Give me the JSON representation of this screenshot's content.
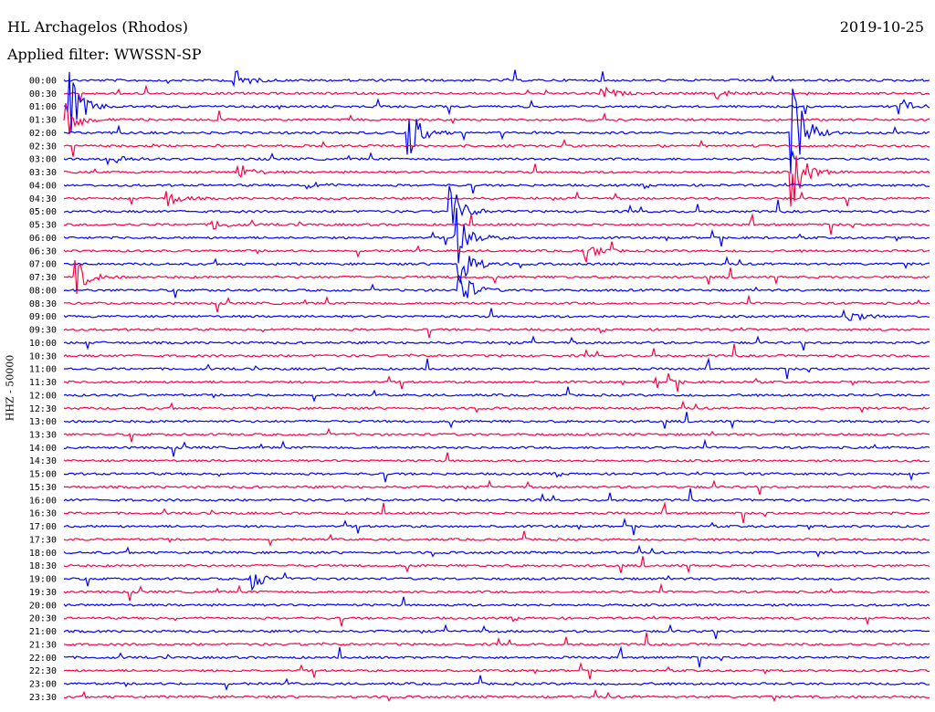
{
  "header": {
    "station": "HL Archagelos (Rhodos)",
    "date": "2019-10-25",
    "filter": "Applied filter: WWSSN-SP"
  },
  "chart_data": {
    "type": "line",
    "title": "HL Archagelos (Rhodos)",
    "ylabel": "HHZ - 50000",
    "time_labels": [
      "00:00",
      "00:30",
      "01:00",
      "01:30",
      "02:00",
      "02:30",
      "03:00",
      "03:30",
      "04:00",
      "04:30",
      "05:00",
      "05:30",
      "06:00",
      "06:30",
      "07:00",
      "07:30",
      "08:00",
      "08:30",
      "09:00",
      "09:30",
      "10:00",
      "10:30",
      "11:00",
      "11:30",
      "12:00",
      "12:30",
      "13:00",
      "13:30",
      "14:00",
      "14:30",
      "15:00",
      "15:30",
      "16:00",
      "16:30",
      "17:00",
      "17:30",
      "18:00",
      "18:30",
      "19:00",
      "19:30",
      "20:00",
      "20:30",
      "21:00",
      "21:30",
      "22:00",
      "22:30",
      "23:00",
      "23:30"
    ],
    "trace_colors": [
      "#0000ff",
      "#ff0044"
    ],
    "events": [
      {
        "row": 0,
        "x": 0.193,
        "amp": 18
      },
      {
        "row": 1,
        "x": 0.622,
        "amp": 8
      },
      {
        "row": 1,
        "x": 0.755,
        "amp": 6
      },
      {
        "row": 2,
        "x": 0.006,
        "amp": 40
      },
      {
        "row": 2,
        "x": 0.967,
        "amp": 8
      },
      {
        "row": 3,
        "x": 0.002,
        "amp": 22
      },
      {
        "row": 4,
        "x": 0.398,
        "amp": 30
      },
      {
        "row": 4,
        "x": 0.841,
        "amp": 60
      },
      {
        "row": 6,
        "x": 0.06,
        "amp": 6
      },
      {
        "row": 7,
        "x": 0.203,
        "amp": 9
      },
      {
        "row": 7,
        "x": 0.841,
        "amp": 40
      },
      {
        "row": 8,
        "x": 0.283,
        "amp": 5
      },
      {
        "row": 9,
        "x": 0.12,
        "amp": 9
      },
      {
        "row": 10,
        "x": 0.448,
        "amp": 28
      },
      {
        "row": 11,
        "x": 0.172,
        "amp": 7
      },
      {
        "row": 12,
        "x": 0.454,
        "amp": 34
      },
      {
        "row": 13,
        "x": 0.601,
        "amp": 14
      },
      {
        "row": 14,
        "x": 0.457,
        "amp": 30
      },
      {
        "row": 15,
        "x": 0.015,
        "amp": 18
      },
      {
        "row": 16,
        "x": 0.457,
        "amp": 26
      },
      {
        "row": 18,
        "x": 0.903,
        "amp": 10
      },
      {
        "row": 23,
        "x": 0.686,
        "amp": 9
      },
      {
        "row": 38,
        "x": 0.217,
        "amp": 14
      }
    ]
  }
}
